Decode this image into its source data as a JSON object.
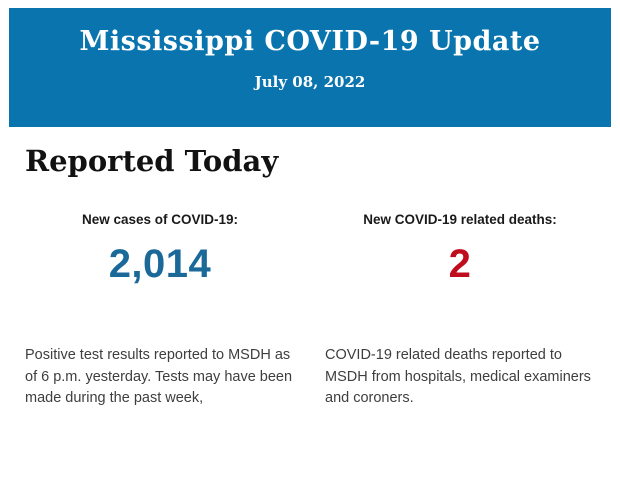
{
  "header": {
    "title": "Mississippi COVID-19 Update",
    "date": "July 08, 2022",
    "background_color": "#0a74ae",
    "text_color": "#ffffff"
  },
  "section": {
    "heading": "Reported Today"
  },
  "stats": [
    {
      "label": "New cases of COVID-19:",
      "value": "2,014",
      "value_color": "#1b6999",
      "description": "Positive test results reported to MSDH as of 6 p.m. yesterday. Tests may have been made during the past week,"
    },
    {
      "label": "New COVID-19 related deaths:",
      "value": "2",
      "value_color": "#c00d1d",
      "description": "COVID-19 related deaths reported to MSDH from hospitals, medical examiners and coroners."
    }
  ]
}
